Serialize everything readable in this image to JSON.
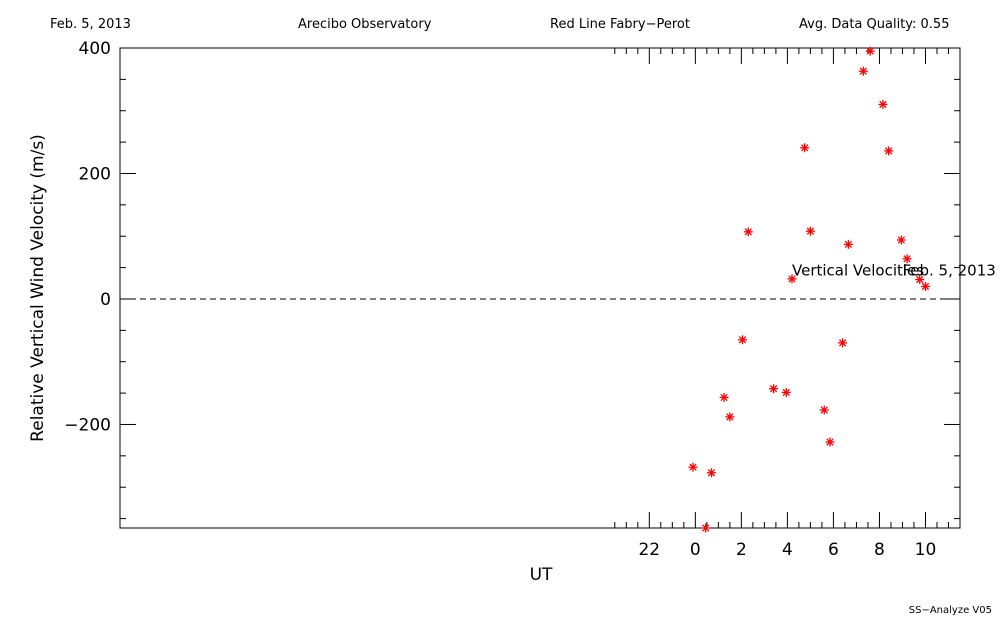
{
  "header": {
    "date": "Feb. 5, 2013",
    "site": "Arecibo Observatory",
    "instrument": "Red Line Fabry−Perot",
    "quality": "Avg. Data Quality: 0.55"
  },
  "footer": {
    "label": "SS−Analyze V05"
  },
  "colors": {
    "points": "#ff0000",
    "axes": "#000000",
    "background": "#ffffff"
  },
  "chart_data": {
    "type": "scatter",
    "title": "",
    "xlabel": "UT",
    "ylabel": "Relative Vertical Wind Velocity (m/s)",
    "xlim": [
      -25,
      11.5
    ],
    "ylim": [
      -365,
      400
    ],
    "x_ticks": [
      22,
      0,
      2,
      4,
      6,
      8,
      10
    ],
    "x_tick_labels": [
      "22",
      "0",
      "2",
      "4",
      "6",
      "8",
      "10"
    ],
    "y_ticks": [
      -200,
      0,
      200,
      400
    ],
    "y_tick_labels": [
      "−200",
      "0",
      "200",
      "400"
    ],
    "reference_line": {
      "y": 0,
      "style": "dashed"
    },
    "annotations": [
      {
        "text": "Vertical Velocities",
        "x": 4.2,
        "y": 33
      },
      {
        "text": "Feb. 5, 2013",
        "x": 9.0,
        "y": 33
      }
    ],
    "marker": "asterisk",
    "series": [
      {
        "points": [
          [
            -0.1,
            -268
          ],
          [
            0.45,
            -365
          ],
          [
            0.7,
            -277
          ],
          [
            1.25,
            -157
          ],
          [
            1.5,
            -188
          ],
          [
            2.05,
            -65
          ],
          [
            2.3,
            107
          ],
          [
            3.4,
            -143
          ],
          [
            3.95,
            -149
          ],
          [
            4.2,
            32
          ],
          [
            4.75,
            241
          ],
          [
            5.0,
            108
          ],
          [
            5.6,
            -177
          ],
          [
            5.85,
            -228
          ],
          [
            6.4,
            -70
          ],
          [
            6.65,
            87
          ],
          [
            7.3,
            363
          ],
          [
            7.6,
            395
          ],
          [
            8.15,
            310
          ],
          [
            8.4,
            236
          ],
          [
            8.95,
            94
          ],
          [
            9.2,
            64
          ],
          [
            9.75,
            31
          ],
          [
            10.0,
            20
          ]
        ]
      }
    ],
    "grid": false
  }
}
